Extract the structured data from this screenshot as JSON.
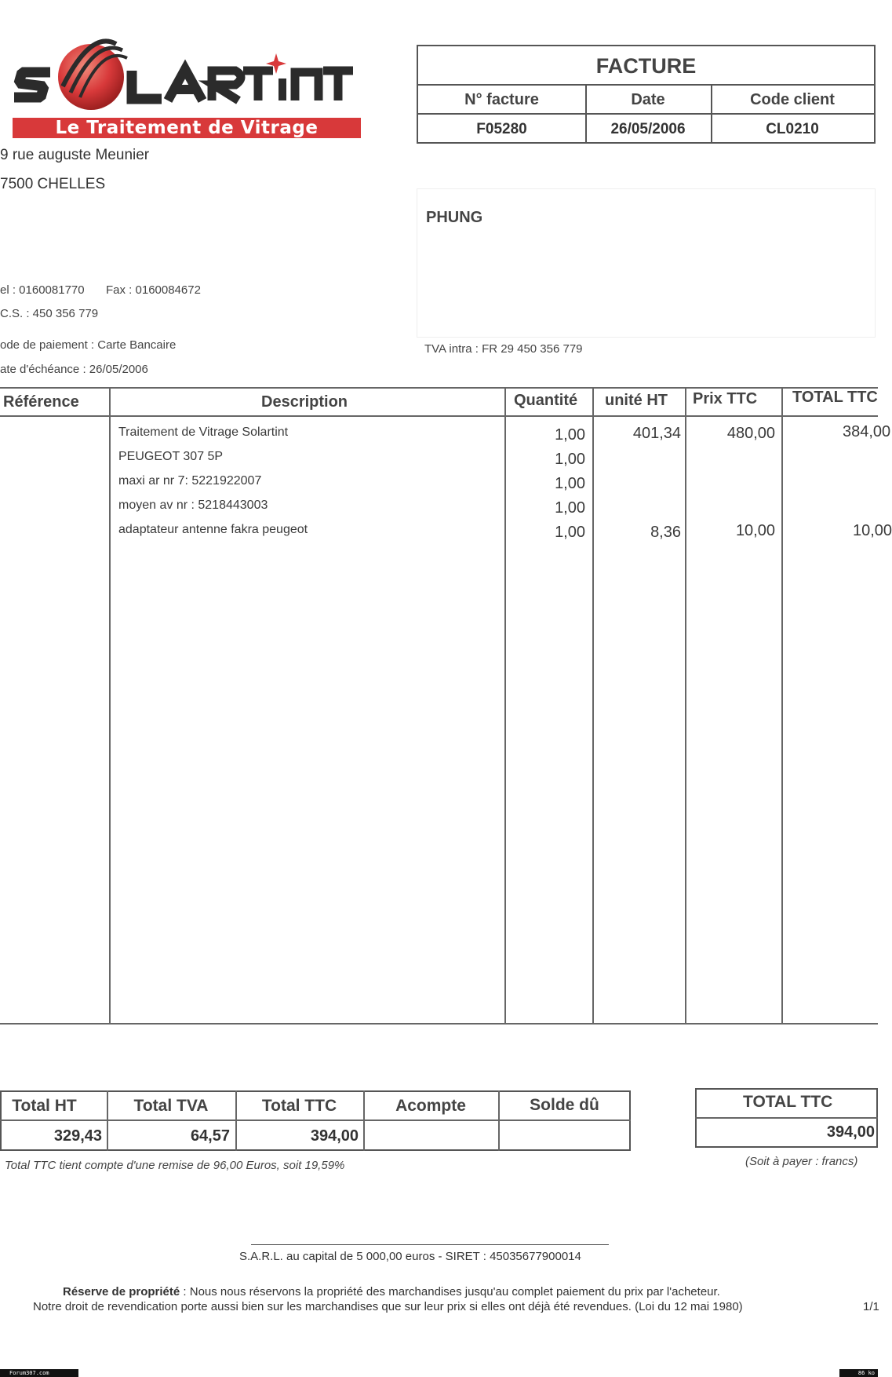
{
  "sender": {
    "logo_text": "SOLARTINT",
    "logo_tagline": "Le Traitement de Vitrage",
    "address_line1": "9 rue auguste Meunier",
    "address_line2": "7500 CHELLES",
    "tel": "el : 0160081770",
    "fax": "Fax : 0160084672",
    "rcs": "C.S. : 450 356 779",
    "payment_mode": "ode de paiement : Carte Bancaire",
    "due_date": "ate d'échéance : 26/05/2006"
  },
  "invoice": {
    "title": "FACTURE",
    "headers": [
      "N° facture",
      "Date",
      "Code client"
    ],
    "values": [
      "F05280",
      "26/05/2006",
      "CL0210"
    ]
  },
  "client": {
    "name": "PHUNG",
    "tva_intra": "TVA intra : FR 29 450 356 779"
  },
  "items_table": {
    "headers": [
      "Référence",
      "Description",
      "Quantité",
      "unité HT",
      "Prix TTC",
      "TOTAL TTC"
    ],
    "rows": [
      {
        "description": "Traitement de Vitrage Solartint",
        "quantity": "1,00",
        "unit_ht": "401,34",
        "prix_ttc": "480,00",
        "total_ttc": "384,00"
      },
      {
        "description": "PEUGEOT 307 5P",
        "quantity": "1,00",
        "unit_ht": "",
        "prix_ttc": "",
        "total_ttc": ""
      },
      {
        "description": "maxi ar nr 7: 5221922007",
        "quantity": "1,00",
        "unit_ht": "",
        "prix_ttc": "",
        "total_ttc": ""
      },
      {
        "description": "moyen av nr  : 5218443003",
        "quantity": "1,00",
        "unit_ht": "",
        "prix_ttc": "",
        "total_ttc": ""
      },
      {
        "description": "adaptateur antenne fakra peugeot",
        "quantity": "1,00",
        "unit_ht": "8,36",
        "prix_ttc": "10,00",
        "total_ttc": "10,00"
      }
    ]
  },
  "totals": {
    "headers": [
      "Total HT",
      "Total TVA",
      "Total TTC",
      "Acompte",
      "Solde dû"
    ],
    "values": [
      "329,43",
      "64,57",
      "394,00",
      "",
      ""
    ],
    "note": "Total TTC tient compte d'une remise de 96,00 Euros, soit 19,59%"
  },
  "grand_total": {
    "label": "TOTAL TTC",
    "value": "394,00",
    "note": "(Soit à payer :  francs)"
  },
  "footer": {
    "company": "S.A.R.L. au capital de 5 000,00 euros - SIRET : 45035677900014",
    "reserve_label": "Réserve de propriété",
    "reserve_text": " : Nous nous réservons la propriété des marchandises jusqu'au complet paiement du prix par l'acheteur.",
    "reserve_text2": "Notre droit de revendication porte aussi bien sur les marchandises que sur leur prix si elles ont déjà été revendues. (Loi du 12 mai 1980)",
    "page": "1/1",
    "watermark_left": "Forum307.com",
    "watermark_right": "86 ko"
  },
  "colors": {
    "brand_red": "#d8393a",
    "logo_dark": "#2b2b2b"
  }
}
